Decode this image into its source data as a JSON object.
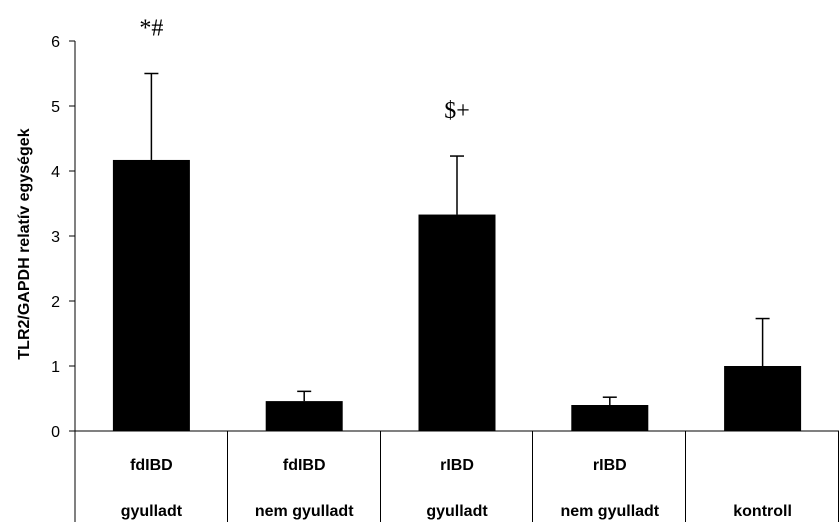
{
  "chart_data": {
    "type": "bar",
    "ylabel": "TLR2/GAPDH relatív egységek",
    "ylim": [
      0,
      6
    ],
    "yticks": [
      "0",
      "1",
      "2",
      "3",
      "4",
      "5",
      "6"
    ],
    "categories": [
      {
        "line1": "fdIBD",
        "line2": "gyulladt"
      },
      {
        "line1": "fdIBD",
        "line2": "nem gyulladt"
      },
      {
        "line1": "rIBD",
        "line2": "gyulladt"
      },
      {
        "line1": "rIBD",
        "line2": "nem gyulladt"
      },
      {
        "line1": "",
        "line2": "kontroll"
      }
    ],
    "values": [
      4.17,
      0.46,
      3.33,
      0.4,
      1.0
    ],
    "errors": [
      1.33,
      0.15,
      0.9,
      0.12,
      0.73
    ],
    "annotations": [
      "*#",
      "",
      "$+",
      "",
      ""
    ],
    "bar_color": "#000000",
    "grid": false,
    "legend": "none"
  }
}
